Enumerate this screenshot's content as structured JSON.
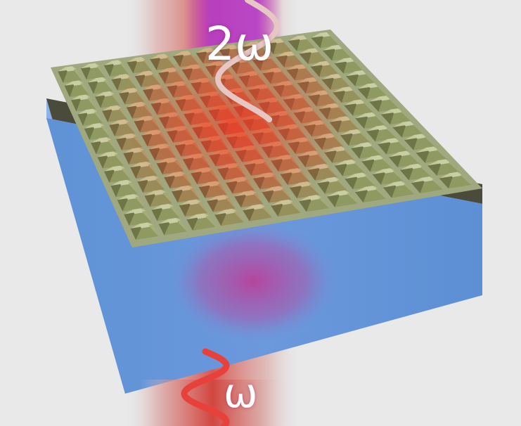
{
  "labels": {
    "output_frequency": "2ω",
    "input_frequency": "ω"
  },
  "colors": {
    "background": "#e9e9e9",
    "substrate_front": "#5d8ed6",
    "substrate_side": "#6f9ee0",
    "metal_pattern": "#b9c29a",
    "beam_red": "#e23a2a",
    "beam_purple": "#b53cc8",
    "wave": "#e6c7c4",
    "input_wave": "#e8403a"
  },
  "structure": {
    "pattern": "pyramid-array",
    "rows": 12,
    "columns": 12
  },
  "icons": {
    "substrate": "substrate-block",
    "array": "metasurface-array",
    "beam": "laser-beam"
  }
}
